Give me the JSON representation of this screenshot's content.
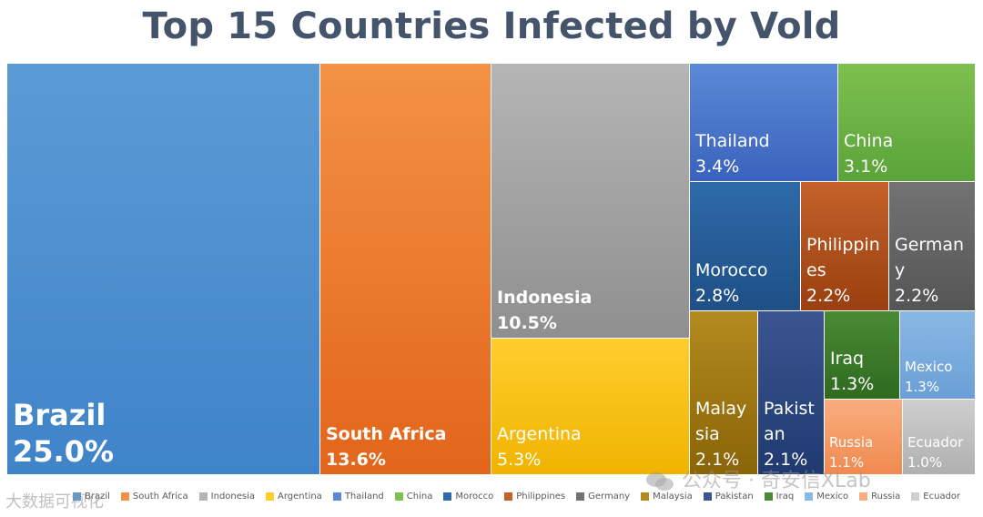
{
  "chart_data": {
    "type": "treemap",
    "title": "Top 15 Countries Infected by Vold",
    "items": [
      {
        "name": "Brazil",
        "label_lines": [
          "Brazil"
        ],
        "value": 25.0,
        "percent_label": "25.0%",
        "color": "#5b9bd5",
        "dark": "#3f83c9"
      },
      {
        "name": "South Africa",
        "label_lines": [
          "South Africa"
        ],
        "value": 13.6,
        "percent_label": "13.6%",
        "color": "#f39145",
        "dark": "#e2651a"
      },
      {
        "name": "Indonesia",
        "label_lines": [
          "Indonesia"
        ],
        "value": 10.5,
        "percent_label": "10.5%",
        "color": "#b5b5b5",
        "dark": "#8f8f8f"
      },
      {
        "name": "Argentina",
        "label_lines": [
          "Argentina"
        ],
        "value": 5.3,
        "percent_label": "5.3%",
        "color": "#ffcd2e",
        "dark": "#f0b400"
      },
      {
        "name": "Thailand",
        "label_lines": [
          "Thailand"
        ],
        "value": 3.4,
        "percent_label": "3.4%",
        "color": "#5a8ad6",
        "dark": "#3b62bd"
      },
      {
        "name": "China",
        "label_lines": [
          "China"
        ],
        "value": 3.1,
        "percent_label": "3.1%",
        "color": "#7cc04f",
        "dark": "#5ba33a"
      },
      {
        "name": "Morocco",
        "label_lines": [
          "Morocco"
        ],
        "value": 2.8,
        "percent_label": "2.8%",
        "color": "#2e6aa9",
        "dark": "#1e4f86"
      },
      {
        "name": "Philippines",
        "label_lines": [
          "Philippin",
          "es"
        ],
        "value": 2.2,
        "percent_label": "2.2%",
        "color": "#c4622a",
        "dark": "#9a3f10"
      },
      {
        "name": "Germany",
        "label_lines": [
          "German",
          "y"
        ],
        "value": 2.2,
        "percent_label": "2.2%",
        "color": "#737373",
        "dark": "#555555"
      },
      {
        "name": "Malaysia",
        "label_lines": [
          "Malay",
          "sia"
        ],
        "value": 2.1,
        "percent_label": "2.1%",
        "color": "#b38a1e",
        "dark": "#8a6508"
      },
      {
        "name": "Pakistan",
        "label_lines": [
          "Pakist",
          "an"
        ],
        "value": 2.1,
        "percent_label": "2.1%",
        "color": "#3a5590",
        "dark": "#203a70"
      },
      {
        "name": "Iraq",
        "label_lines": [
          "Iraq"
        ],
        "value": 1.3,
        "percent_label": "1.3%",
        "color": "#4a8a35",
        "dark": "#2f6a1f"
      },
      {
        "name": "Mexico",
        "label_lines": [
          "Mexico"
        ],
        "value": 1.3,
        "percent_label": "1.3%",
        "color": "#8ab8e4",
        "dark": "#6a9fd6"
      },
      {
        "name": "Russia",
        "label_lines": [
          "Russia"
        ],
        "value": 1.1,
        "percent_label": "1.1%",
        "color": "#f9ad7e",
        "dark": "#f08a50"
      },
      {
        "name": "Ecuador",
        "label_lines": [
          "Ecuador"
        ],
        "value": 1.0,
        "percent_label": "1.0%",
        "color": "#cfcfcf",
        "dark": "#b0b0b0"
      }
    ]
  },
  "watermark": {
    "right_text": "公众号 · 奇安信XLab",
    "left_text": "大数据可视化"
  }
}
